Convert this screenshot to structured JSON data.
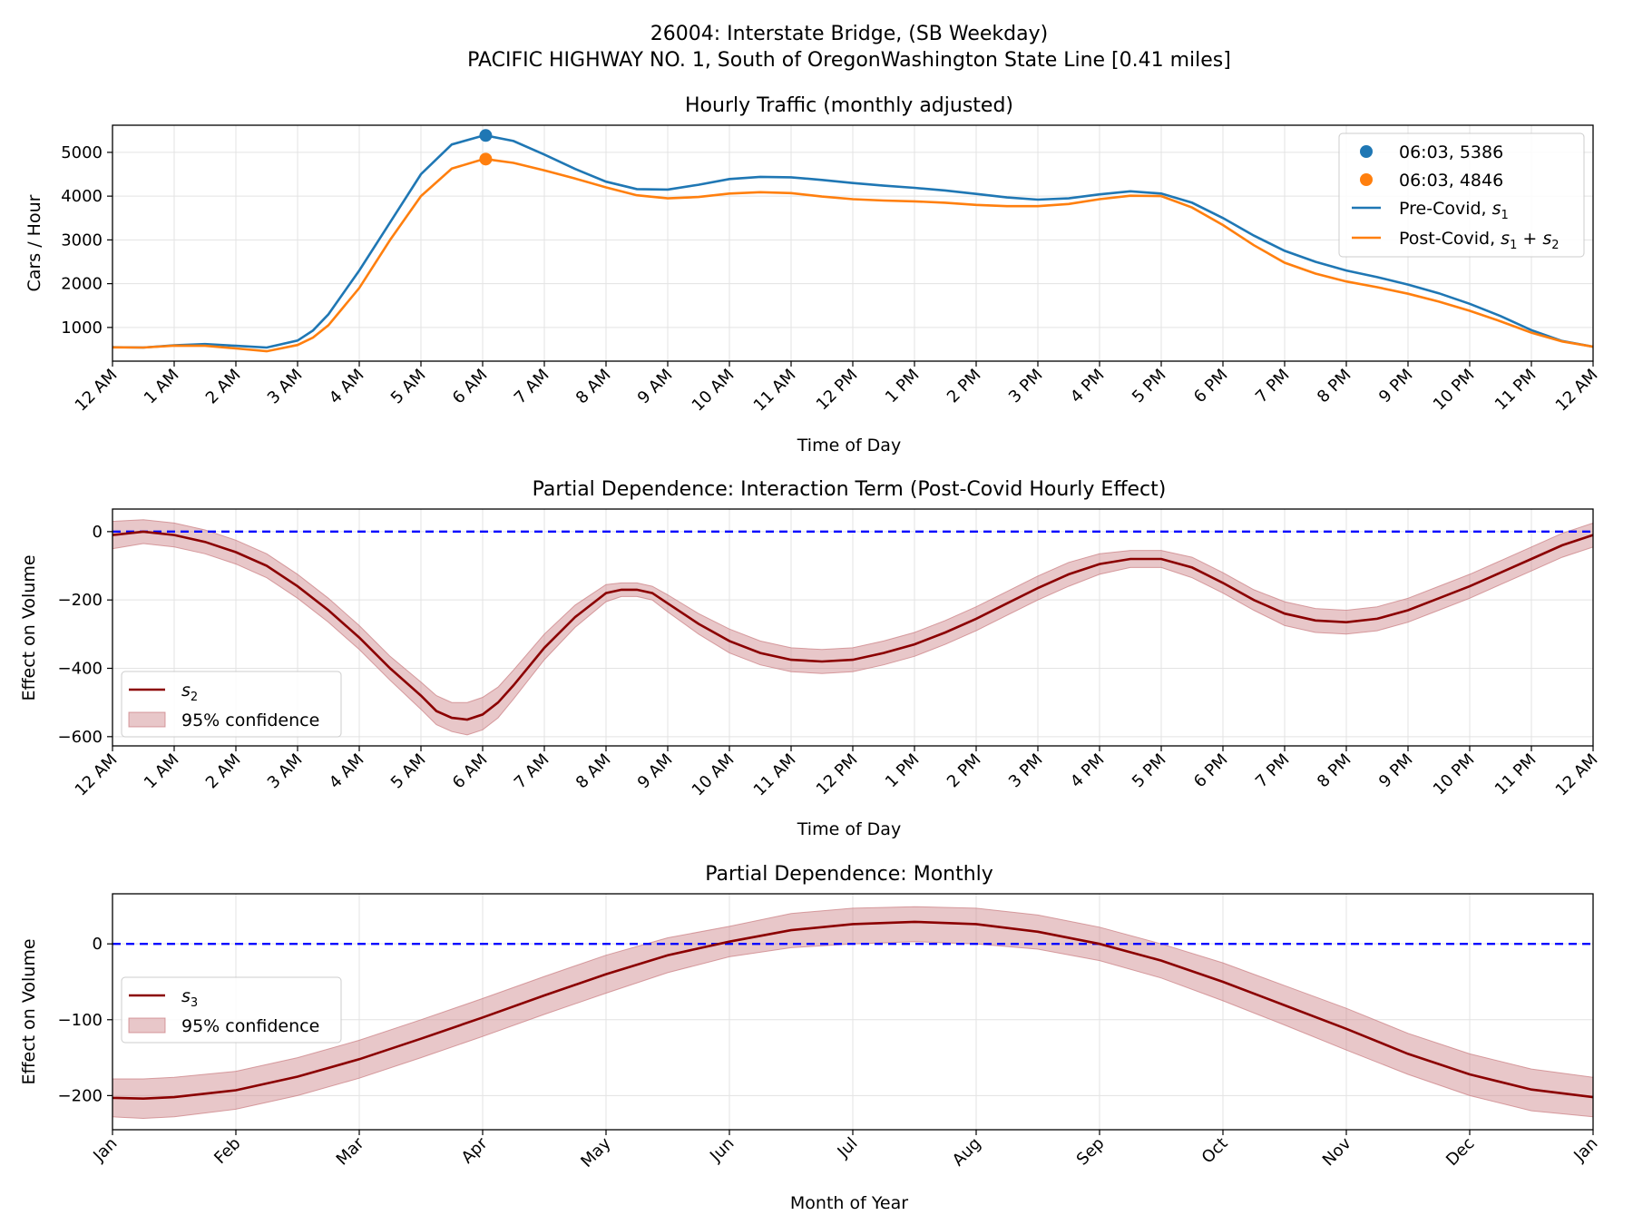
{
  "suptitle": {
    "line1": "26004: Interstate Bridge, (SB Weekday)",
    "line2": "PACIFIC HIGHWAY NO. 1, South of OregonWashington State Line [0.41 miles]"
  },
  "colors": {
    "pre": "#1f77b4",
    "post": "#ff7f0e",
    "effect": "#8b0000",
    "band": "#c97a7f",
    "zero": "#0000ff",
    "grid": "#e3e3e3"
  },
  "chart_data": [
    {
      "type": "line",
      "title": "Hourly Traffic (monthly adjusted)",
      "xlabel": "Time of Day",
      "ylabel": "Cars / Hour",
      "xlim": [
        0,
        24
      ],
      "ylim": [
        230,
        5620
      ],
      "yticks": [
        1000,
        2000,
        3000,
        4000,
        5000
      ],
      "yticklabels": [
        "1000",
        "2000",
        "3000",
        "4000",
        "5000"
      ],
      "xticks": [
        0,
        1,
        2,
        3,
        4,
        5,
        6,
        7,
        8,
        9,
        10,
        11,
        12,
        13,
        14,
        15,
        16,
        17,
        18,
        19,
        20,
        21,
        22,
        23,
        24
      ],
      "xticklabels": [
        "12 AM",
        "1 AM",
        "2 AM",
        "3 AM",
        "4 AM",
        "5 AM",
        "6 AM",
        "7 AM",
        "8 AM",
        "9 AM",
        "10 AM",
        "11 AM",
        "12 PM",
        "1 PM",
        "2 PM",
        "3 PM",
        "4 PM",
        "5 PM",
        "6 PM",
        "7 PM",
        "8 PM",
        "9 PM",
        "10 PM",
        "11 PM",
        "12 AM"
      ],
      "grid": true,
      "legend": "top-right",
      "x": [
        0,
        0.5,
        1,
        1.5,
        2,
        2.5,
        3,
        3.25,
        3.5,
        4,
        4.5,
        5,
        5.5,
        6,
        6.05,
        6.5,
        7,
        7.5,
        8,
        8.5,
        9,
        9.5,
        10,
        10.5,
        11,
        11.5,
        12,
        12.5,
        13,
        13.5,
        14,
        14.5,
        15,
        15.5,
        16,
        16.5,
        17,
        17.5,
        18,
        18.5,
        19,
        19.5,
        20,
        20.5,
        21,
        21.5,
        22,
        22.5,
        23,
        23.5,
        24
      ],
      "series": [
        {
          "name": "Pre-Covid, ",
          "name_sub": "s1",
          "values": [
            550,
            540,
            590,
            620,
            580,
            540,
            700,
            930,
            1300,
            2300,
            3400,
            4500,
            5180,
            5380,
            5386,
            5260,
            4950,
            4620,
            4330,
            4160,
            4150,
            4260,
            4390,
            4440,
            4430,
            4370,
            4300,
            4240,
            4190,
            4130,
            4050,
            3970,
            3920,
            3950,
            4040,
            4110,
            4060,
            3850,
            3500,
            3100,
            2750,
            2500,
            2300,
            2150,
            1980,
            1780,
            1540,
            1260,
            940,
            690,
            560
          ]
        },
        {
          "name": "Post-Covid, ",
          "name_sub": "s1+s2",
          "values": [
            545,
            540,
            585,
            580,
            520,
            455,
            600,
            770,
            1050,
            1900,
            3000,
            4000,
            4630,
            4840,
            4846,
            4760,
            4590,
            4400,
            4200,
            4020,
            3950,
            3980,
            4060,
            4090,
            4070,
            3990,
            3930,
            3900,
            3880,
            3850,
            3800,
            3770,
            3770,
            3820,
            3930,
            4010,
            4000,
            3740,
            3340,
            2880,
            2480,
            2230,
            2050,
            1920,
            1770,
            1590,
            1380,
            1140,
            880,
            680,
            560
          ]
        }
      ],
      "markers": [
        {
          "label": "06:03, 5386",
          "x": 6.05,
          "y": 5386,
          "series": 0
        },
        {
          "label": "06:03, 4846",
          "x": 6.05,
          "y": 4846,
          "series": 1
        }
      ]
    },
    {
      "type": "area",
      "title": "Partial Dependence: Interaction Term (Post-Covid Hourly Effect)",
      "xlabel": "Time of Day",
      "ylabel": "Effect on Volume",
      "xlim": [
        0,
        24
      ],
      "ylim": [
        -627,
        66
      ],
      "yticks": [
        -600,
        -400,
        -200,
        0
      ],
      "yticklabels": [
        "−600",
        "−400",
        "−200",
        "0"
      ],
      "xticks": [
        0,
        1,
        2,
        3,
        4,
        5,
        6,
        7,
        8,
        9,
        10,
        11,
        12,
        13,
        14,
        15,
        16,
        17,
        18,
        19,
        20,
        21,
        22,
        23,
        24
      ],
      "xticklabels": [
        "12 AM",
        "1 AM",
        "2 AM",
        "3 AM",
        "4 AM",
        "5 AM",
        "6 AM",
        "7 AM",
        "8 AM",
        "9 AM",
        "10 AM",
        "11 AM",
        "12 PM",
        "1 PM",
        "2 PM",
        "3 PM",
        "4 PM",
        "5 PM",
        "6 PM",
        "7 PM",
        "8 PM",
        "9 PM",
        "10 PM",
        "11 PM",
        "12 AM"
      ],
      "grid": true,
      "legend": "lower-left",
      "zero_line": 0,
      "x": [
        0,
        0.5,
        1,
        1.5,
        2,
        2.5,
        3,
        3.5,
        4,
        4.5,
        5,
        5.25,
        5.5,
        5.75,
        6,
        6.25,
        6.5,
        7,
        7.5,
        8,
        8.25,
        8.5,
        8.75,
        9,
        9.5,
        10,
        10.5,
        11,
        11.5,
        12,
        12.5,
        13,
        13.5,
        14,
        14.5,
        15,
        15.5,
        16,
        16.5,
        17,
        17.5,
        18,
        18.5,
        19,
        19.5,
        20,
        20.5,
        21,
        21.5,
        22,
        22.5,
        23,
        23.5,
        24
      ],
      "series": [
        {
          "name": "",
          "name_sub": "s2",
          "values": [
            -10,
            0,
            -10,
            -30,
            -60,
            -100,
            -160,
            -230,
            -310,
            -400,
            -480,
            -525,
            -545,
            -550,
            -535,
            -500,
            -450,
            -340,
            -250,
            -180,
            -170,
            -170,
            -180,
            -210,
            -270,
            -320,
            -355,
            -375,
            -380,
            -375,
            -355,
            -330,
            -295,
            -255,
            -210,
            -165,
            -125,
            -95,
            -80,
            -80,
            -105,
            -150,
            -200,
            -240,
            -260,
            -265,
            -255,
            -230,
            -195,
            -160,
            -120,
            -80,
            -40,
            -10
          ],
          "lower": [
            -50,
            -35,
            -45,
            -65,
            -95,
            -135,
            -195,
            -265,
            -345,
            -435,
            -520,
            -565,
            -585,
            -595,
            -580,
            -545,
            -490,
            -375,
            -280,
            -205,
            -190,
            -190,
            -200,
            -235,
            -300,
            -355,
            -390,
            -410,
            -415,
            -410,
            -390,
            -365,
            -330,
            -290,
            -245,
            -200,
            -160,
            -125,
            -105,
            -105,
            -135,
            -180,
            -230,
            -275,
            -295,
            -300,
            -290,
            -265,
            -230,
            -195,
            -155,
            -115,
            -75,
            -45
          ],
          "upper": [
            30,
            35,
            25,
            5,
            -25,
            -65,
            -125,
            -195,
            -275,
            -365,
            -440,
            -480,
            -500,
            -500,
            -485,
            -455,
            -405,
            -300,
            -215,
            -155,
            -150,
            -150,
            -160,
            -185,
            -240,
            -285,
            -320,
            -340,
            -345,
            -340,
            -320,
            -295,
            -260,
            -220,
            -175,
            -130,
            -90,
            -65,
            -55,
            -55,
            -75,
            -120,
            -170,
            -205,
            -225,
            -230,
            -220,
            -195,
            -160,
            -125,
            -85,
            -45,
            -5,
            25
          ]
        }
      ],
      "legend_entries": [
        "",
        "95% confidence"
      ]
    },
    {
      "type": "area",
      "title": "Partial Dependence: Monthly",
      "xlabel": "Month of Year",
      "ylabel": "Effect on Volume",
      "xlim": [
        0,
        12
      ],
      "ylim": [
        -245,
        66
      ],
      "yticks": [
        -200,
        -100,
        0
      ],
      "yticklabels": [
        "−200",
        "−100",
        "0"
      ],
      "xticks": [
        0,
        1,
        2,
        3,
        4,
        5,
        6,
        7,
        8,
        9,
        10,
        11,
        12
      ],
      "xticklabels": [
        "Jan",
        "Feb",
        "Mar",
        "Apr",
        "May",
        "Jun",
        "Jul",
        "Aug",
        "Sep",
        "Oct",
        "Nov",
        "Dec",
        "Jan"
      ],
      "grid": true,
      "legend": "center-left",
      "zero_line": 0,
      "x": [
        0,
        0.25,
        0.5,
        1,
        1.5,
        2,
        2.5,
        3,
        3.5,
        4,
        4.5,
        5,
        5.5,
        6,
        6.5,
        7,
        7.5,
        8,
        8.5,
        9,
        9.5,
        10,
        10.5,
        11,
        11.5,
        12
      ],
      "series": [
        {
          "name": "",
          "name_sub": "s3",
          "values": [
            -203,
            -204,
            -202,
            -193,
            -175,
            -152,
            -125,
            -97,
            -68,
            -40,
            -15,
            3,
            18,
            26,
            29,
            26,
            16,
            0,
            -22,
            -50,
            -81,
            -112,
            -145,
            -172,
            -192,
            -202
          ],
          "lower": [
            -228,
            -230,
            -228,
            -218,
            -200,
            -177,
            -150,
            -122,
            -93,
            -65,
            -38,
            -17,
            -5,
            0,
            3,
            0,
            -7,
            -22,
            -45,
            -75,
            -107,
            -140,
            -172,
            -200,
            -220,
            -228
          ],
          "upper": [
            -178,
            -178,
            -176,
            -168,
            -150,
            -127,
            -100,
            -72,
            -43,
            -15,
            8,
            23,
            40,
            47,
            49,
            47,
            38,
            22,
            0,
            -25,
            -55,
            -85,
            -118,
            -145,
            -165,
            -176
          ]
        }
      ],
      "legend_entries": [
        "",
        "95% confidence"
      ]
    }
  ]
}
